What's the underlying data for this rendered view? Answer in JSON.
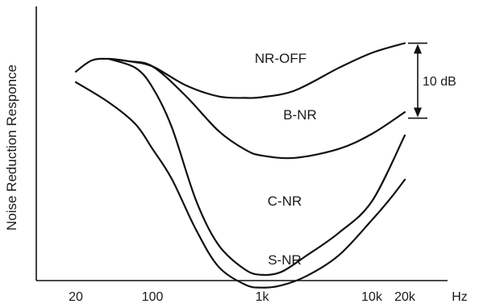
{
  "chart_data": {
    "type": "line",
    "ylabel": "Noise Reduction Responce",
    "xunit": "Hz",
    "xscale": "log",
    "x_ticks": [
      {
        "label": "20",
        "value": 20
      },
      {
        "label": "100",
        "value": 100
      },
      {
        "label": "1k",
        "value": 1000
      },
      {
        "label": "10k",
        "value": 10000
      },
      {
        "label": "20k",
        "value": 20000
      }
    ],
    "ylim": [
      -38,
      6
    ],
    "grid": false,
    "legend": "none",
    "scale_annotation": {
      "label": "10 dB",
      "value_db": 10,
      "y_top": 3.6,
      "y_bottom": -6.4
    },
    "series": [
      {
        "name": "NR-OFF",
        "x": [
          20,
          28,
          40,
          60,
          100,
          200,
          400,
          700,
          1000,
          2000,
          5000,
          10000,
          20000
        ],
        "y": [
          -0.2,
          1.3,
          1.5,
          1.2,
          0.5,
          -2.0,
          -3.5,
          -3.7,
          -3.6,
          -2.7,
          0.3,
          2.3,
          3.6
        ]
      },
      {
        "name": "B-NR",
        "x": [
          40,
          60,
          100,
          200,
          400,
          700,
          1000,
          2000,
          5000,
          10000,
          20000
        ],
        "y": [
          1.5,
          1.2,
          0.5,
          -3.4,
          -8.1,
          -10.6,
          -11.4,
          -11.7,
          -10.5,
          -8.5,
          -5.6
        ]
      },
      {
        "name": "C-NR",
        "x": [
          40,
          70,
          100,
          150,
          250,
          400,
          700,
          1000,
          1500,
          2500,
          5000,
          10000,
          20000
        ],
        "y": [
          1.5,
          0.3,
          -2.3,
          -7.6,
          -17.4,
          -23.3,
          -26.6,
          -27.3,
          -26.9,
          -24.8,
          -21.7,
          -17.5,
          -8.7
        ]
      },
      {
        "name": "S-NR",
        "x": [
          20,
          40,
          70,
          100,
          150,
          250,
          400,
          700,
          1000,
          1500,
          2500,
          5000,
          10000,
          15000,
          20000
        ],
        "y": [
          -1.6,
          -4.3,
          -7.2,
          -10.5,
          -14.5,
          -21.3,
          -26.2,
          -28.6,
          -29.0,
          -28.7,
          -27.5,
          -24.7,
          -20.0,
          -17.0,
          -14.6
        ]
      }
    ]
  }
}
